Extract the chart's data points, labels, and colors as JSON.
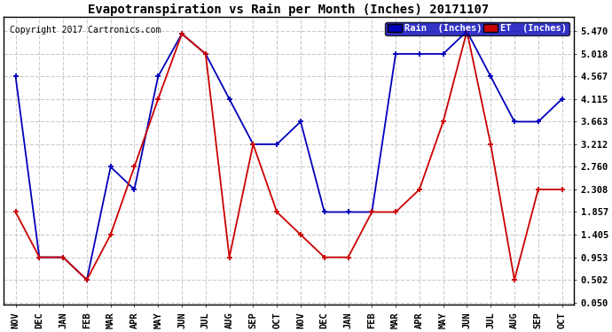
{
  "title": "Evapotranspiration vs Rain per Month (Inches) 20171107",
  "copyright": "Copyright 2017 Cartronics.com",
  "months": [
    "NOV",
    "DEC",
    "JAN",
    "FEB",
    "MAR",
    "APR",
    "MAY",
    "JUN",
    "JUL",
    "AUG",
    "SEP",
    "OCT",
    "NOV",
    "DEC",
    "JAN",
    "FEB",
    "MAR",
    "APR",
    "MAY",
    "JUN",
    "JUL",
    "AUG",
    "SEP",
    "OCT"
  ],
  "rain": [
    4.567,
    0.953,
    0.953,
    0.502,
    2.76,
    2.308,
    4.567,
    5.42,
    5.018,
    4.115,
    3.212,
    3.212,
    3.663,
    1.857,
    1.857,
    1.857,
    5.018,
    5.018,
    5.018,
    5.47,
    4.567,
    3.663,
    3.663,
    4.115
  ],
  "et": [
    1.857,
    0.953,
    0.953,
    0.502,
    1.405,
    2.76,
    4.115,
    5.42,
    5.018,
    0.953,
    3.212,
    1.857,
    1.405,
    0.953,
    0.953,
    1.857,
    1.857,
    2.308,
    3.663,
    5.47,
    3.212,
    0.502,
    2.308,
    2.308
  ],
  "yticks": [
    0.05,
    0.502,
    0.953,
    1.405,
    1.857,
    2.308,
    2.76,
    3.212,
    3.663,
    4.115,
    4.567,
    5.018,
    5.47
  ],
  "rain_color": "#0000bb",
  "et_color": "#cc0000",
  "bg_color": "#ffffff",
  "grid_color": "#cccccc",
  "title_fontsize": 10,
  "tick_fontsize": 7.5,
  "copyright_fontsize": 7,
  "legend_rain_label": "Rain  (Inches)",
  "legend_et_label": "ET  (Inches)",
  "ymin": 0.0,
  "ymax": 5.75
}
